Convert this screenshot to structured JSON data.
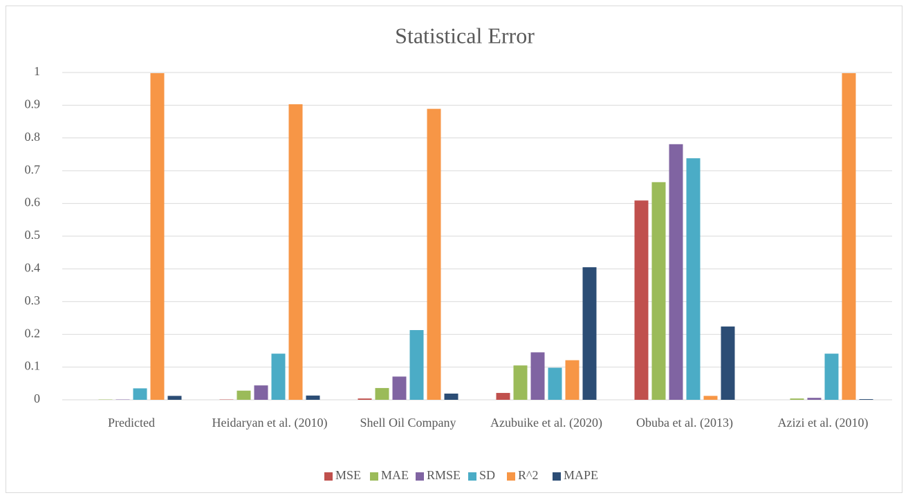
{
  "chart_data": {
    "type": "bar",
    "title": "Statistical Error",
    "categories": [
      "Predicted",
      "Heidaryan et al. (2010)",
      "Shell Oil Company",
      "Azubuike et al. (2020)",
      "Obuba et al. (2013)",
      "Azizi et al. (2010)"
    ],
    "series": [
      {
        "name": "MSE",
        "color": "#c0504d",
        "values": [
          0,
          0.001,
          0.004,
          0.021,
          0.609,
          0
        ]
      },
      {
        "name": "MAE",
        "color": "#9bbb59",
        "values": [
          0.001,
          0.028,
          0.036,
          0.105,
          0.665,
          0.004
        ]
      },
      {
        "name": "RMSE",
        "color": "#8064a2",
        "values": [
          0.001,
          0.044,
          0.071,
          0.145,
          0.781,
          0.006
        ]
      },
      {
        "name": "SD",
        "color": "#4bacc6",
        "values": [
          0.035,
          0.141,
          0.213,
          0.098,
          0.738,
          0.141
        ]
      },
      {
        "name": "R^2",
        "color": "#f79646",
        "values": [
          0.998,
          0.903,
          0.889,
          0.121,
          0.012,
          0.998
        ]
      },
      {
        "name": "MAPE",
        "color": "#2c4d75",
        "values": [
          0.012,
          0.013,
          0.019,
          0.405,
          0.224,
          0.002
        ]
      }
    ],
    "ylim": [
      0,
      1
    ],
    "yticks": [
      0,
      0.1,
      0.2,
      0.3,
      0.4,
      0.5,
      0.6,
      0.7,
      0.8,
      0.9,
      1
    ],
    "grid": true,
    "legend": "bottom"
  }
}
